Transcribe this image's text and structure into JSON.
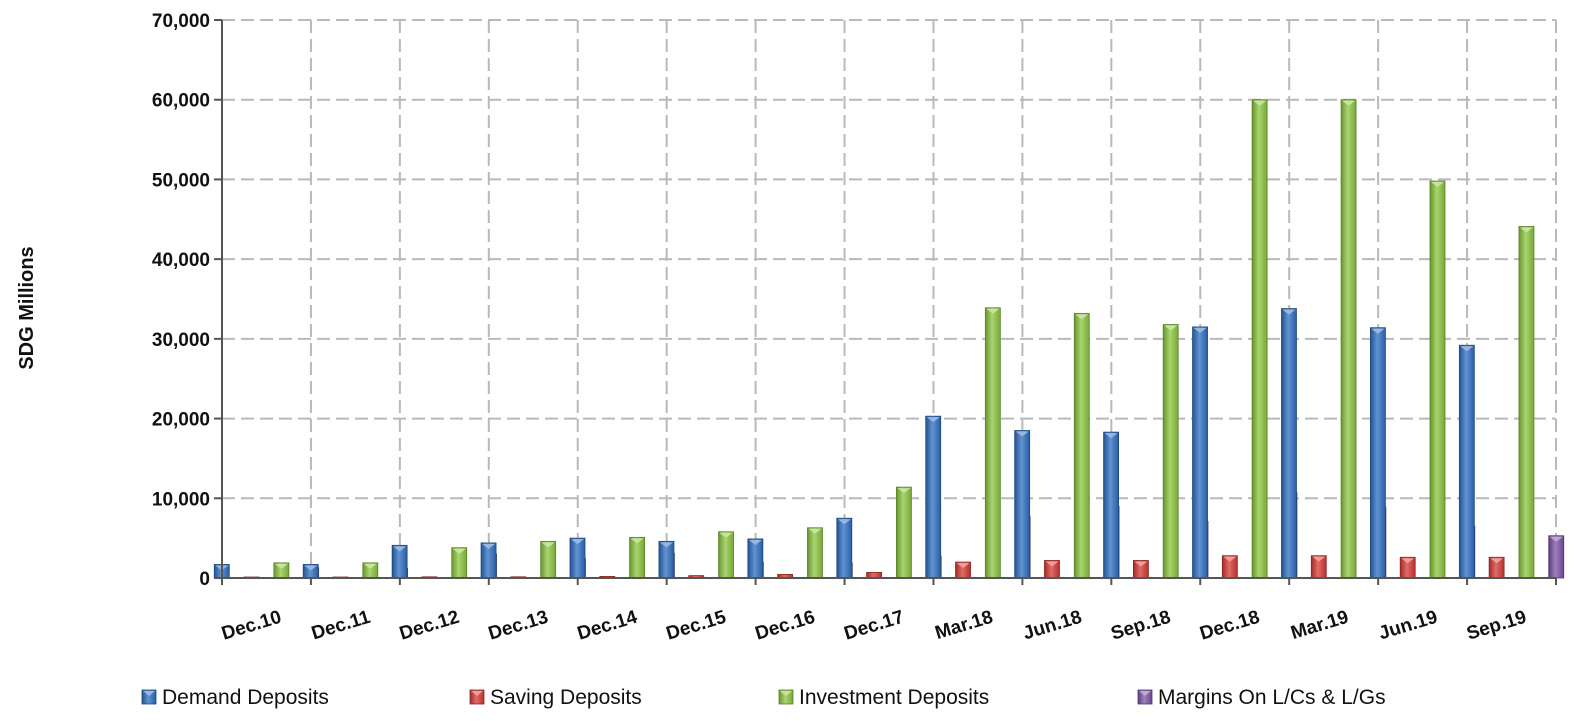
{
  "chart_data": {
    "type": "bar",
    "ylabel": "SDG  Millions",
    "ylim": [
      0,
      70000
    ],
    "yticks": [
      0,
      10000,
      20000,
      30000,
      40000,
      50000,
      60000,
      70000
    ],
    "grid": true,
    "legend_position": "bottom",
    "categories": [
      "Dec.10",
      "Dec.11",
      "Dec.12",
      "Dec.13",
      "Dec.14",
      "Dec.15",
      "Dec.16",
      "Dec.17",
      "Mar.18",
      "Jun.18",
      "Sep.18",
      "Dec.18",
      "Mar.19",
      "Jun.19",
      "Sep.19"
    ],
    "series": [
      {
        "name": "Demand Deposits",
        "color": "#2e6fc2",
        "values": [
          1700,
          1700,
          4100,
          4400,
          5000,
          4600,
          4900,
          7500,
          20300,
          18500,
          18300,
          31500,
          33800,
          31400,
          29200
        ]
      },
      {
        "name": "Saving Deposits",
        "color": "#d63a35",
        "values": [
          100,
          100,
          150,
          150,
          200,
          300,
          450,
          700,
          2000,
          2200,
          2200,
          2800,
          2800,
          2600,
          2600
        ]
      },
      {
        "name": "Investment Deposits",
        "color": "#8cc63f",
        "values": [
          1900,
          1900,
          3800,
          4600,
          5100,
          5800,
          6300,
          11400,
          33900,
          33200,
          31800,
          60000,
          60000,
          49800,
          44100
        ]
      },
      {
        "name": "Margins On L/Cs & L/Gs",
        "color": "#7c53a8",
        "values": [
          1300,
          1200,
          3000,
          2400,
          3100,
          2000,
          1900,
          2700,
          7700,
          9000,
          7100,
          10700,
          8900,
          6500,
          5300
        ]
      }
    ]
  }
}
